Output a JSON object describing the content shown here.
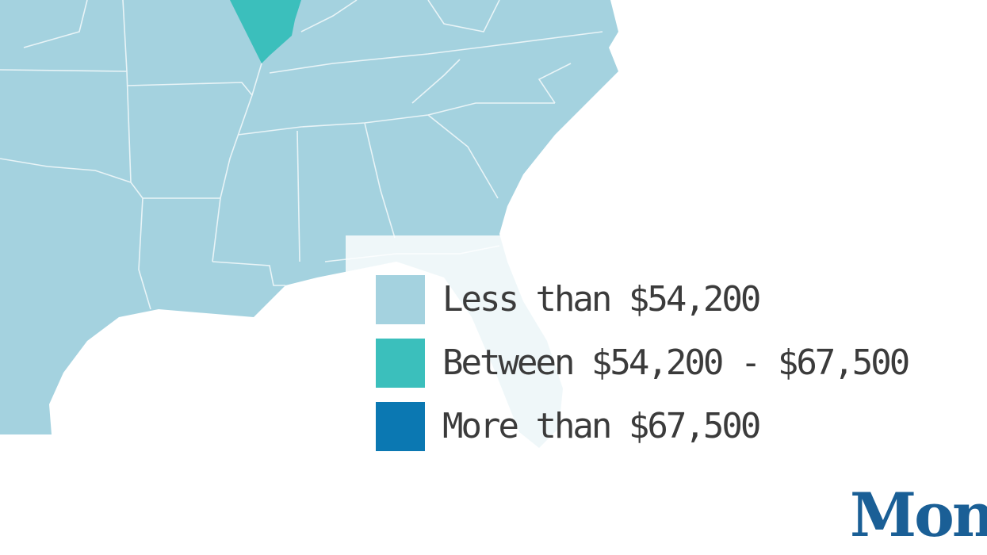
{
  "colors": {
    "low": "#a4d2df",
    "mid": "#3bbfbc",
    "high": "#0b78b2",
    "border": "#e9f4f7",
    "ocean": "#ffffff",
    "text": "#3b3b3b",
    "brand": "#1a5f96"
  },
  "legend": {
    "items": [
      {
        "label": "Less than $54,200",
        "color": "#a4d2df"
      },
      {
        "label": "Between $54,200 - $67,500",
        "color": "#3bbfbc"
      },
      {
        "label": "More than $67,500",
        "color": "#0b78b2"
      }
    ]
  },
  "brand": {
    "text": "Mone"
  }
}
